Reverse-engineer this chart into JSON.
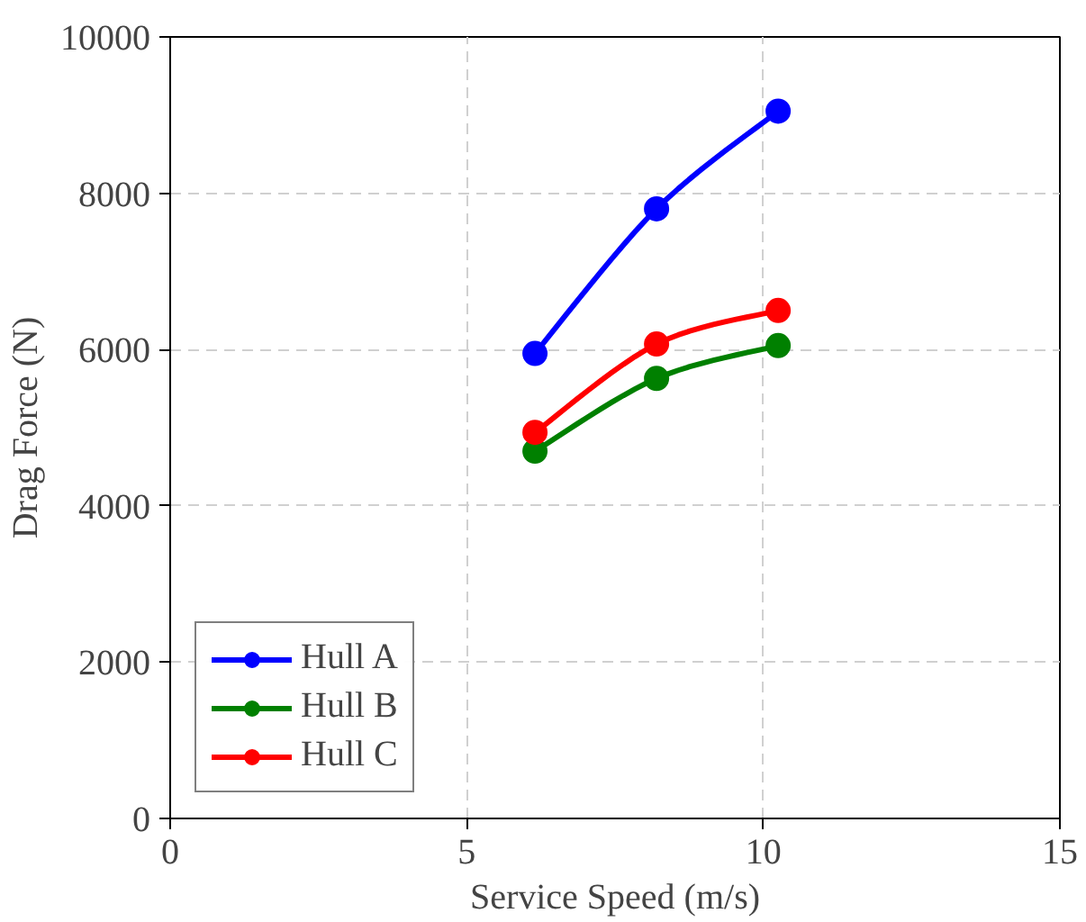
{
  "chart_data": {
    "type": "line",
    "xlabel": "Service Speed (m/s)",
    "ylabel": "Drag Force (N)",
    "xlim": [
      0,
      15
    ],
    "xticks": [
      0,
      5,
      10,
      15
    ],
    "ylim": [
      0,
      10000
    ],
    "yticks": [
      0,
      2000,
      4000,
      6000,
      8000,
      10000
    ],
    "grid": true,
    "legend": "bottom left",
    "marker": "circle",
    "line_style": "solid",
    "series": [
      {
        "name": "Hull A",
        "color": "#0000ff",
        "x": [
          6.15,
          8.2,
          10.25
        ],
        "values": [
          5950,
          7800,
          9050
        ]
      },
      {
        "name": "Hull B",
        "color": "#008000",
        "x": [
          6.15,
          8.2,
          10.25
        ],
        "values": [
          4700,
          5630,
          6050
        ]
      },
      {
        "name": "Hull C",
        "color": "#ff0000",
        "x": [
          6.15,
          8.2,
          10.25
        ],
        "values": [
          4940,
          6070,
          6500
        ]
      }
    ]
  }
}
